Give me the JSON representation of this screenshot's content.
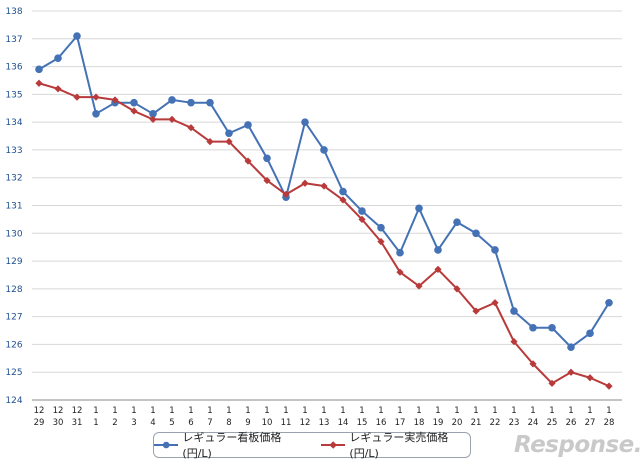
{
  "chart_data": {
    "type": "line",
    "title": "",
    "xlabel": "",
    "ylabel": "",
    "ylim": [
      124,
      138
    ],
    "yticks": [
      124,
      125,
      126,
      127,
      128,
      129,
      130,
      131,
      132,
      133,
      134,
      135,
      136,
      137,
      138
    ],
    "x_month": [
      "12",
      "12",
      "12",
      "1",
      "1",
      "1",
      "1",
      "1",
      "1",
      "1",
      "1",
      "1",
      "1",
      "1",
      "1",
      "1",
      "1",
      "1",
      "1",
      "1",
      "1",
      "1",
      "1",
      "1",
      "1",
      "1",
      "1",
      "1",
      "1",
      "1",
      "1"
    ],
    "x_day": [
      "29",
      "30",
      "31",
      "1",
      "2",
      "3",
      "4",
      "5",
      "6",
      "7",
      "8",
      "9",
      "10",
      "11",
      "12",
      "13",
      "14",
      "15",
      "16",
      "17",
      "18",
      "19",
      "20",
      "21",
      "22",
      "23",
      "24",
      "25",
      "26",
      "27",
      "28"
    ],
    "series": [
      {
        "name": "レギュラー看板価格(円/L)",
        "color": "#4472b5",
        "marker": "circle",
        "values": [
          135.9,
          136.3,
          137.1,
          134.3,
          134.7,
          134.7,
          134.3,
          134.8,
          134.7,
          134.7,
          133.6,
          133.9,
          132.7,
          131.3,
          134.0,
          133.0,
          131.5,
          130.8,
          130.2,
          129.3,
          130.9,
          129.4,
          130.4,
          130.0,
          129.4,
          127.2,
          126.6,
          126.6,
          125.9,
          126.4,
          127.5
        ]
      },
      {
        "name": "レギュラー実売価格(円/L)",
        "color": "#b83a3a",
        "marker": "diamond",
        "values": [
          135.4,
          135.2,
          134.9,
          134.9,
          134.8,
          134.4,
          134.1,
          134.1,
          133.8,
          133.3,
          133.3,
          132.6,
          131.9,
          131.4,
          131.8,
          131.7,
          131.2,
          130.5,
          129.7,
          128.6,
          128.1,
          128.7,
          128.0,
          127.2,
          127.5,
          126.1,
          125.3,
          124.6,
          125.0,
          124.8,
          124.5
        ]
      }
    ],
    "legend_position": "bottom-center",
    "grid": true
  },
  "watermark": "Response."
}
